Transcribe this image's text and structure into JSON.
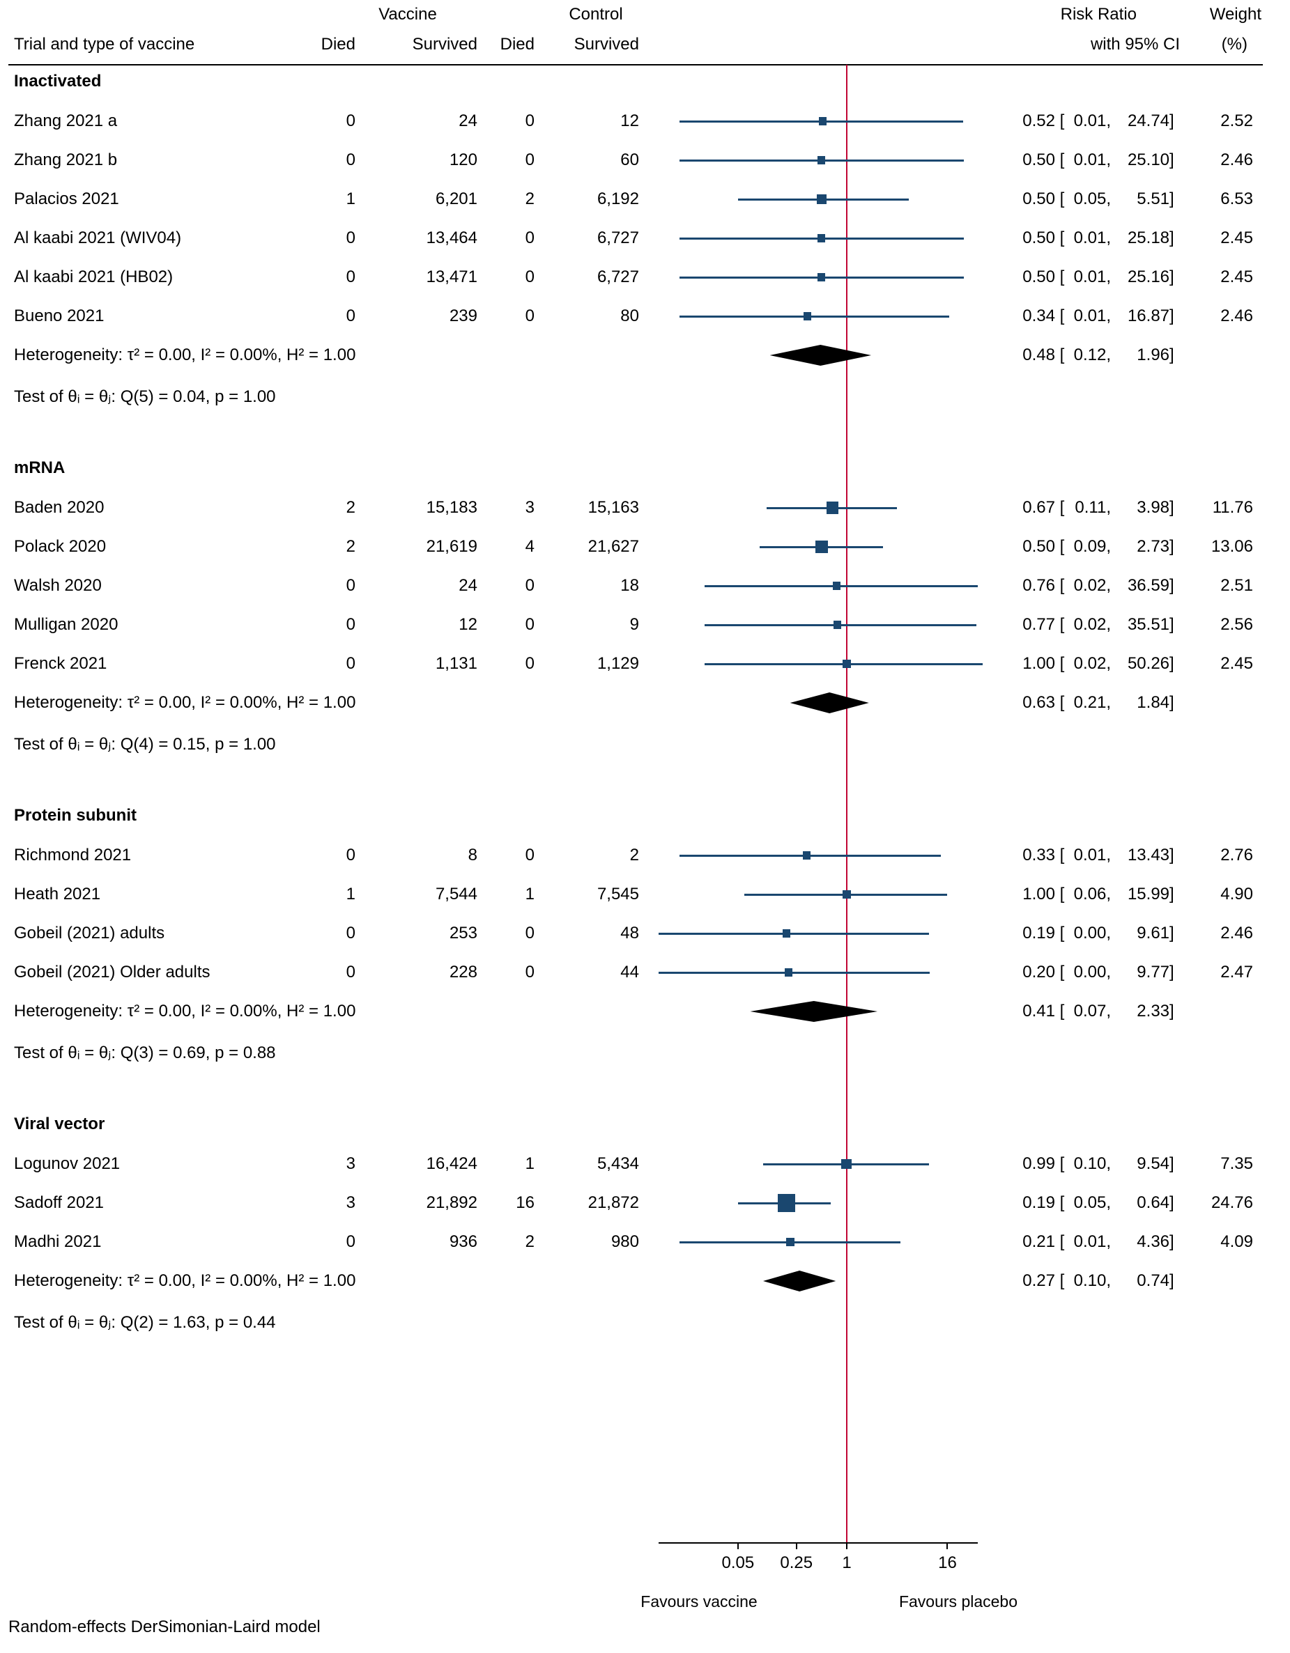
{
  "header": {
    "vaccine": "Vaccine",
    "control": "Control",
    "risk_ratio": "Risk Ratio",
    "weight": "Weight",
    "trial": "Trial and type of vaccine",
    "vaccine_died": "Died",
    "vaccine_survived": "Survived",
    "control_died": "Died",
    "control_survived": "Survived",
    "with_ci": "with 95% CI",
    "weight_pct": "(%)"
  },
  "chart_data": {
    "type": "forest",
    "effect_measure": "Risk Ratio",
    "colors": {
      "marker": "#1a476f",
      "ref_line": "#c10534",
      "diamond": "#000000"
    },
    "x_axis": {
      "scale": "log",
      "ticks": [
        0.05,
        0.25,
        1,
        16
      ],
      "tick_labels": [
        "0.05",
        "0.25",
        "1",
        "16"
      ],
      "ref_line": 1,
      "label_left": "Favours vaccine",
      "label_right": "Favours placebo"
    },
    "footer": "Random-effects DerSimonian-Laird model",
    "groups": [
      {
        "label": "Inactivated",
        "rows": [
          {
            "trial": "Zhang 2021 a",
            "vaccine_died": "0",
            "vaccine_survived": "24",
            "control_died": "0",
            "control_survived": "12",
            "rr": 0.52,
            "ci_low": 0.01,
            "ci_high": 24.74,
            "weight": 2.52
          },
          {
            "trial": "Zhang 2021 b",
            "vaccine_died": "0",
            "vaccine_survived": "120",
            "control_died": "0",
            "control_survived": "60",
            "rr": 0.5,
            "ci_low": 0.01,
            "ci_high": 25.1,
            "weight": 2.46
          },
          {
            "trial": "Palacios 2021",
            "vaccine_died": "1",
            "vaccine_survived": "6,201",
            "control_died": "2",
            "control_survived": "6,192",
            "rr": 0.5,
            "ci_low": 0.05,
            "ci_high": 5.51,
            "weight": 6.53
          },
          {
            "trial": "Al kaabi 2021 (WIV04)",
            "vaccine_died": "0",
            "vaccine_survived": "13,464",
            "control_died": "0",
            "control_survived": "6,727",
            "rr": 0.5,
            "ci_low": 0.01,
            "ci_high": 25.18,
            "weight": 2.45
          },
          {
            "trial": "Al kaabi 2021 (HB02)",
            "vaccine_died": "0",
            "vaccine_survived": "13,471",
            "control_died": "0",
            "control_survived": "6,727",
            "rr": 0.5,
            "ci_low": 0.01,
            "ci_high": 25.16,
            "weight": 2.45
          },
          {
            "trial": "Bueno 2021",
            "vaccine_died": "0",
            "vaccine_survived": "239",
            "control_died": "0",
            "control_survived": "80",
            "rr": 0.34,
            "ci_low": 0.01,
            "ci_high": 16.87,
            "weight": 2.46
          }
        ],
        "heterogeneity": "Heterogeneity: τ² = 0.00, I² = 0.00%, H² = 1.00",
        "pooled": {
          "rr": 0.48,
          "ci_low": 0.12,
          "ci_high": 1.96
        },
        "test": "Test of θᵢ = θⱼ: Q(5) = 0.04, p = 1.00"
      },
      {
        "label": "mRNA",
        "rows": [
          {
            "trial": "Baden 2020",
            "vaccine_died": "2",
            "vaccine_survived": "15,183",
            "control_died": "3",
            "control_survived": "15,163",
            "rr": 0.67,
            "ci_low": 0.11,
            "ci_high": 3.98,
            "weight": 11.76
          },
          {
            "trial": "Polack 2020",
            "vaccine_died": "2",
            "vaccine_survived": "21,619",
            "control_died": "4",
            "control_survived": "21,627",
            "rr": 0.5,
            "ci_low": 0.09,
            "ci_high": 2.73,
            "weight": 13.06
          },
          {
            "trial": "Walsh 2020",
            "vaccine_died": "0",
            "vaccine_survived": "24",
            "control_died": "0",
            "control_survived": "18",
            "rr": 0.76,
            "ci_low": 0.02,
            "ci_high": 36.59,
            "weight": 2.51
          },
          {
            "trial": "Mulligan 2020",
            "vaccine_died": "0",
            "vaccine_survived": "12",
            "control_died": "0",
            "control_survived": "9",
            "rr": 0.77,
            "ci_low": 0.02,
            "ci_high": 35.51,
            "weight": 2.56
          },
          {
            "trial": "Frenck 2021",
            "vaccine_died": "0",
            "vaccine_survived": "1,131",
            "control_died": "0",
            "control_survived": "1,129",
            "rr": 1.0,
            "ci_low": 0.02,
            "ci_high": 50.26,
            "weight": 2.45
          }
        ],
        "heterogeneity": "Heterogeneity: τ² = 0.00, I² = 0.00%, H² = 1.00",
        "pooled": {
          "rr": 0.63,
          "ci_low": 0.21,
          "ci_high": 1.84
        },
        "test": "Test of θᵢ = θⱼ: Q(4) = 0.15, p = 1.00"
      },
      {
        "label": "Protein subunit",
        "rows": [
          {
            "trial": "Richmond 2021",
            "vaccine_died": "0",
            "vaccine_survived": "8",
            "control_died": "0",
            "control_survived": "2",
            "rr": 0.33,
            "ci_low": 0.01,
            "ci_high": 13.43,
            "weight": 2.76
          },
          {
            "trial": "Heath 2021",
            "vaccine_died": "1",
            "vaccine_survived": "7,544",
            "control_died": "1",
            "control_survived": "7,545",
            "rr": 1.0,
            "ci_low": 0.06,
            "ci_high": 15.99,
            "weight": 4.9
          },
          {
            "trial": "Gobeil (2021) adults",
            "vaccine_died": "0",
            "vaccine_survived": "253",
            "control_died": "0",
            "control_survived": "48",
            "rr": 0.19,
            "ci_low": 0.0,
            "ci_high": 9.61,
            "weight": 2.46
          },
          {
            "trial": "Gobeil (2021) Older adults",
            "vaccine_died": "0",
            "vaccine_survived": "228",
            "control_died": "0",
            "control_survived": "44",
            "rr": 0.2,
            "ci_low": 0.0,
            "ci_high": 9.77,
            "weight": 2.47
          }
        ],
        "heterogeneity": "Heterogeneity: τ² = 0.00, I² = 0.00%, H² = 1.00",
        "pooled": {
          "rr": 0.41,
          "ci_low": 0.07,
          "ci_high": 2.33
        },
        "test": "Test of θᵢ = θⱼ: Q(3) = 0.69, p = 0.88"
      },
      {
        "label": "Viral vector",
        "rows": [
          {
            "trial": "Logunov 2021",
            "vaccine_died": "3",
            "vaccine_survived": "16,424",
            "control_died": "1",
            "control_survived": "5,434",
            "rr": 0.99,
            "ci_low": 0.1,
            "ci_high": 9.54,
            "weight": 7.35
          },
          {
            "trial": "Sadoff 2021",
            "vaccine_died": "3",
            "vaccine_survived": "21,892",
            "control_died": "16",
            "control_survived": "21,872",
            "rr": 0.19,
            "ci_low": 0.05,
            "ci_high": 0.64,
            "weight": 24.76
          },
          {
            "trial": "Madhi 2021",
            "vaccine_died": "0",
            "vaccine_survived": "936",
            "control_died": "2",
            "control_survived": "980",
            "rr": 0.21,
            "ci_low": 0.01,
            "ci_high": 4.36,
            "weight": 4.09
          }
        ],
        "heterogeneity": "Heterogeneity: τ² = 0.00, I² = 0.00%, H² = 1.00",
        "pooled": {
          "rr": 0.27,
          "ci_low": 0.1,
          "ci_high": 0.74
        },
        "test": "Test of θᵢ = θⱼ: Q(2) = 1.63, p = 0.44"
      }
    ]
  }
}
